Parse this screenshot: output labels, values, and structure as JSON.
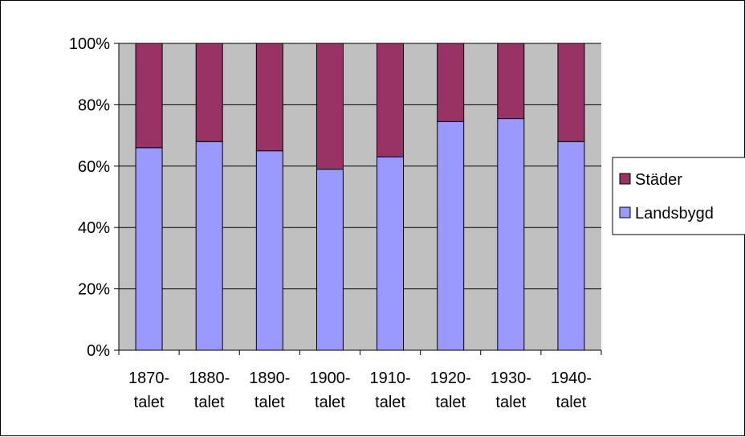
{
  "chart_data": {
    "type": "bar",
    "stacked": true,
    "percent": true,
    "categories": [
      [
        "1870-",
        "talet"
      ],
      [
        "1880-",
        "talet"
      ],
      [
        "1890-",
        "talet"
      ],
      [
        "1900-",
        "talet"
      ],
      [
        "1910-",
        "talet"
      ],
      [
        "1920-",
        "talet"
      ],
      [
        "1930-",
        "talet"
      ],
      [
        "1940-",
        "talet"
      ]
    ],
    "series": [
      {
        "name": "Landsbygd",
        "color": "#9999FF",
        "values": [
          66,
          68,
          65,
          59,
          63,
          74.5,
          75.5,
          68
        ]
      },
      {
        "name": "Städer",
        "color": "#993366",
        "values": [
          34,
          32,
          35,
          41,
          37,
          25.5,
          24.5,
          32
        ]
      }
    ],
    "ylim": [
      0,
      100
    ],
    "yticks": [
      "0%",
      "20%",
      "40%",
      "60%",
      "80%",
      "100%"
    ],
    "ytick_values": [
      0,
      20,
      40,
      60,
      80,
      100
    ],
    "grid": true,
    "plot_background": "#C0C0C0",
    "legend_position": "right",
    "legend_order": [
      "Städer",
      "Landsbygd"
    ]
  }
}
